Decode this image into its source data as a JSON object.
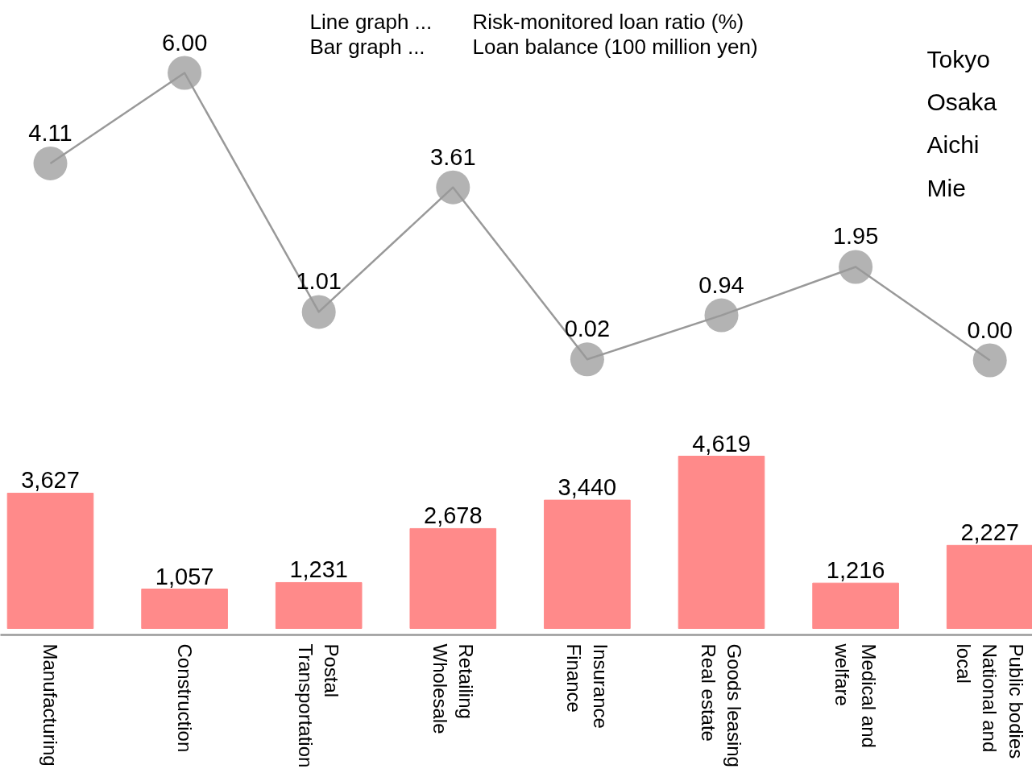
{
  "chart_data": [
    {
      "type": "line",
      "categories": [
        null,
        null,
        null,
        null,
        null,
        null,
        null,
        null
      ],
      "marker": "circle",
      "series": [
        {
          "color": "#999999",
          "values": [
            4.11,
            6.0,
            1.01,
            3.61,
            0.02,
            0.94,
            1.95,
            0.0
          ],
          "value_labels": [
            "4.11",
            "6.00",
            "1.01",
            "3.61",
            "0.02",
            "0.94",
            "1.95",
            "0.00"
          ]
        }
      ],
      "annotations": [
        "Line graph ...",
        "Risk-monitored loan ratio (%)",
        "Bar graph  ...",
        "Loan balance (100 million yen)",
        "Tokyo",
        "Osaka",
        "Aichi",
        "Mie"
      ]
    },
    {
      "type": "bar",
      "categories": [
        "Manufacturing",
        "Construction",
        "Postal\nTransportation",
        "Retailing\nWholesale",
        "Insurance\nFinance",
        "Goods leasing\nReal estate",
        "Medical and\nwelfare",
        "Public bodies\nNational and\nlocal"
      ],
      "tick_labels": "x",
      "series": [
        {
          "color": "#ff8a8a",
          "values": [
            3627,
            1057,
            1231,
            2678,
            3440,
            4619,
            1216,
            2227
          ],
          "value_labels": [
            "3,627",
            "1,057",
            "1,231",
            "2,678",
            "3,440",
            "4,619",
            "1,216",
            "2,227"
          ]
        }
      ]
    }
  ]
}
